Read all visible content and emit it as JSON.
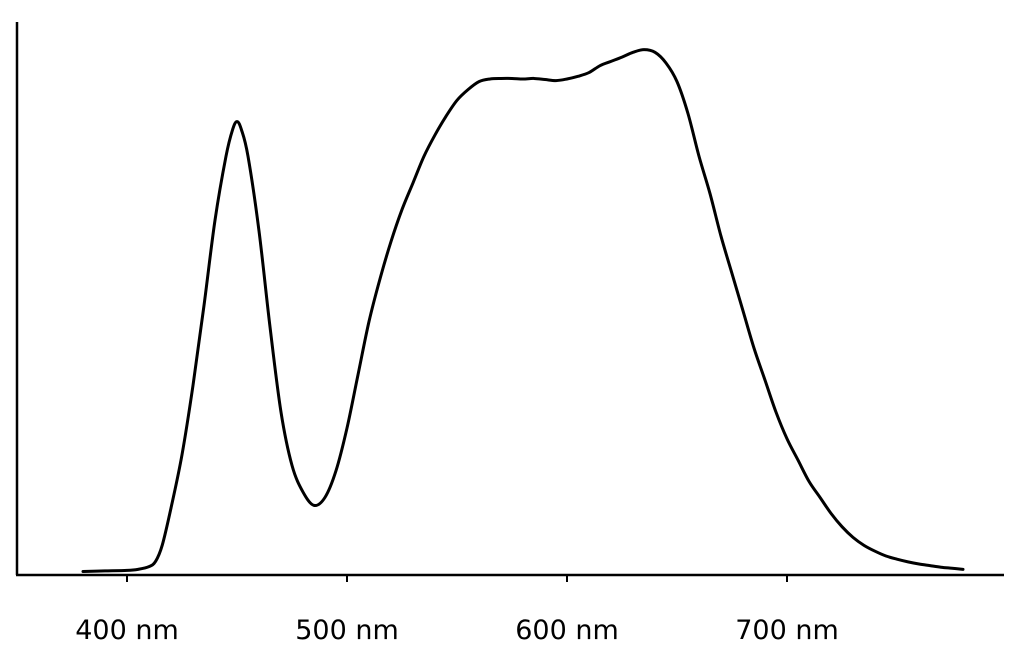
{
  "chart_data": {
    "type": "line",
    "title": "",
    "xlabel": "",
    "ylabel": "",
    "xlim": [
      350,
      785
    ],
    "ylim": [
      0,
      1.0
    ],
    "grid": false,
    "legend": "none",
    "x_ticks": [
      {
        "value": 400,
        "label": "400 nm"
      },
      {
        "value": 500,
        "label": "500 nm"
      },
      {
        "value": 600,
        "label": "600 nm"
      },
      {
        "value": 700,
        "label": "700 nm"
      }
    ],
    "series": [
      {
        "color": "#000000",
        "points": [
          [
            380,
            0.001
          ],
          [
            390,
            0.002
          ],
          [
            400,
            0.003
          ],
          [
            405,
            0.005
          ],
          [
            410,
            0.01
          ],
          [
            413,
            0.02
          ],
          [
            416,
            0.05
          ],
          [
            420,
            0.12
          ],
          [
            425,
            0.22
          ],
          [
            430,
            0.35
          ],
          [
            435,
            0.5
          ],
          [
            440,
            0.66
          ],
          [
            445,
            0.78
          ],
          [
            448,
            0.83
          ],
          [
            450,
            0.845
          ],
          [
            452,
            0.83
          ],
          [
            455,
            0.78
          ],
          [
            460,
            0.64
          ],
          [
            465,
            0.46
          ],
          [
            470,
            0.3
          ],
          [
            475,
            0.2
          ],
          [
            480,
            0.15
          ],
          [
            485,
            0.125
          ],
          [
            490,
            0.14
          ],
          [
            495,
            0.19
          ],
          [
            500,
            0.27
          ],
          [
            505,
            0.37
          ],
          [
            510,
            0.47
          ],
          [
            515,
            0.55
          ],
          [
            520,
            0.62
          ],
          [
            525,
            0.68
          ],
          [
            530,
            0.73
          ],
          [
            535,
            0.78
          ],
          [
            540,
            0.82
          ],
          [
            545,
            0.855
          ],
          [
            550,
            0.885
          ],
          [
            555,
            0.905
          ],
          [
            560,
            0.92
          ],
          [
            565,
            0.925
          ],
          [
            570,
            0.926
          ],
          [
            575,
            0.926
          ],
          [
            580,
            0.925
          ],
          [
            585,
            0.926
          ],
          [
            590,
            0.924
          ],
          [
            595,
            0.922
          ],
          [
            600,
            0.925
          ],
          [
            605,
            0.93
          ],
          [
            610,
            0.937
          ],
          [
            615,
            0.95
          ],
          [
            620,
            0.958
          ],
          [
            625,
            0.966
          ],
          [
            630,
            0.975
          ],
          [
            635,
            0.98
          ],
          [
            640,
            0.975
          ],
          [
            645,
            0.955
          ],
          [
            650,
            0.92
          ],
          [
            655,
            0.86
          ],
          [
            660,
            0.78
          ],
          [
            665,
            0.71
          ],
          [
            670,
            0.63
          ],
          [
            675,
            0.56
          ],
          [
            680,
            0.49
          ],
          [
            685,
            0.42
          ],
          [
            690,
            0.36
          ],
          [
            695,
            0.3
          ],
          [
            700,
            0.25
          ],
          [
            705,
            0.21
          ],
          [
            710,
            0.17
          ],
          [
            715,
            0.14
          ],
          [
            720,
            0.11
          ],
          [
            725,
            0.085
          ],
          [
            730,
            0.065
          ],
          [
            735,
            0.05
          ],
          [
            740,
            0.039
          ],
          [
            745,
            0.03
          ],
          [
            750,
            0.024
          ],
          [
            755,
            0.019
          ],
          [
            760,
            0.015
          ],
          [
            765,
            0.012
          ],
          [
            770,
            0.009
          ],
          [
            775,
            0.007
          ],
          [
            780,
            0.005
          ]
        ]
      }
    ]
  }
}
